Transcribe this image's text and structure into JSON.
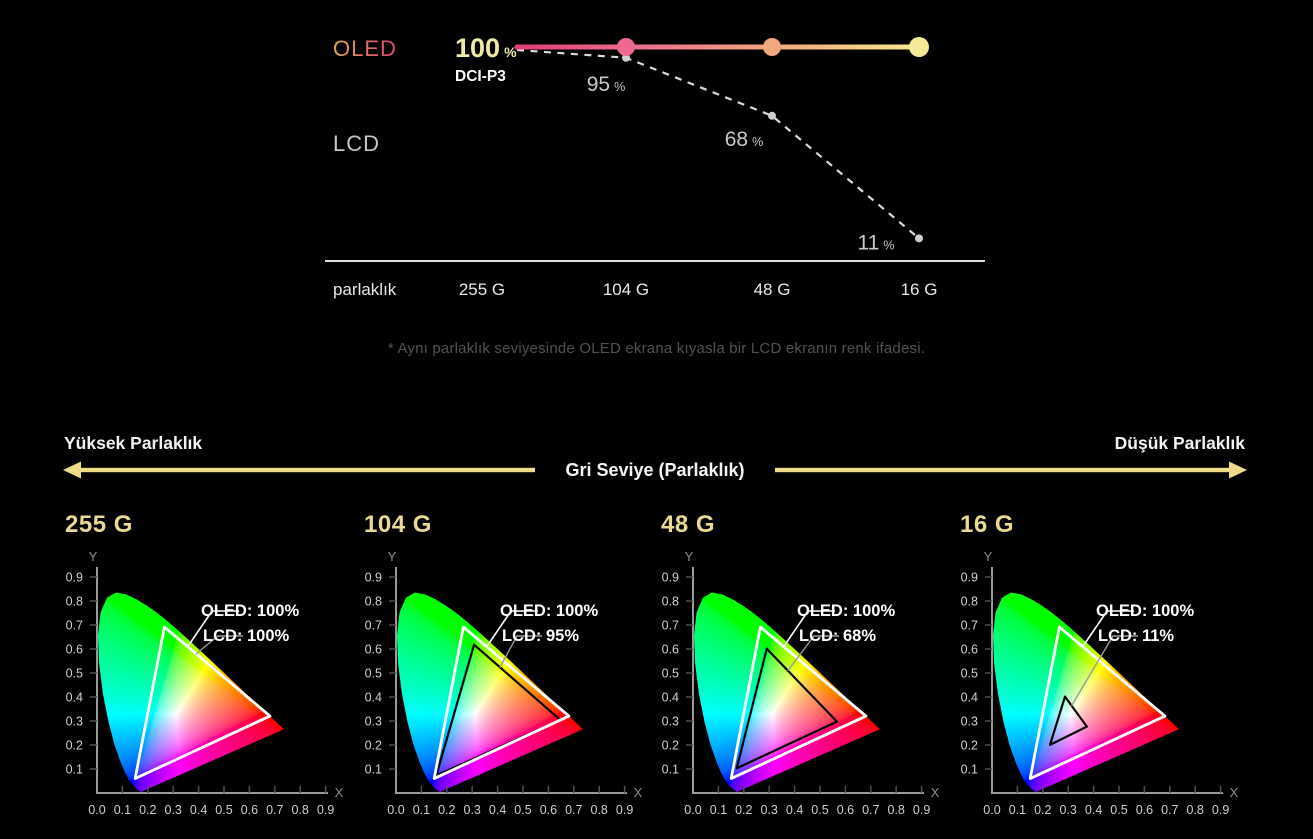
{
  "top_chart": {
    "oled_label": "OLED",
    "lcd_label": "LCD",
    "value_label": "100",
    "percent": "%",
    "standard_label": "DCI-P3",
    "x_axis_label": "parlaklık",
    "gray_levels": [
      "255 G",
      "104 G",
      "48 G",
      "16 G"
    ],
    "oled_series": [
      100,
      100,
      100,
      100
    ],
    "lcd_series": [
      100,
      95,
      68,
      11
    ],
    "lcd_point_labels": [
      "95",
      "68",
      "11"
    ]
  },
  "footnote": "* Aynı parlaklık seviyesinde OLED ekrana kıyasla bir LCD ekranın renk ifadesi.",
  "band": {
    "left_label": "Yüksek Parlaklık",
    "center_label": "Gri Seviye (Parlaklık)",
    "right_label": "Düşük Parlaklık"
  },
  "cie_axes": {
    "x_label": "X",
    "y_label": "Y",
    "x_ticks": [
      "0.0",
      "0.1",
      "0.2",
      "0.3",
      "0.4",
      "0.5",
      "0.6",
      "0.7",
      "0.8",
      "0.9"
    ],
    "y_ticks": [
      "0.1",
      "0.2",
      "0.3",
      "0.4",
      "0.5",
      "0.6",
      "0.7",
      "0.8",
      "0.9"
    ]
  },
  "cie_charts": [
    {
      "title": "255 G",
      "oled_annotation": "OLED: 100%",
      "lcd_annotation": "LCD: 100%",
      "oled_pct": 100,
      "lcd_pct": 100
    },
    {
      "title": "104 G",
      "oled_annotation": "OLED: 100%",
      "lcd_annotation": "LCD: 95%",
      "oled_pct": 100,
      "lcd_pct": 95
    },
    {
      "title": "48 G",
      "oled_annotation": "OLED: 100%",
      "lcd_annotation": "LCD: 68%",
      "oled_pct": 100,
      "lcd_pct": 68
    },
    {
      "title": "16 G",
      "oled_annotation": "OLED: 100%",
      "lcd_annotation": "LCD: 11%",
      "oled_pct": 100,
      "lcd_pct": 11
    }
  ],
  "colors": {
    "background": "#000000",
    "oled_gradient_start": "#e23d74",
    "oled_gradient_mid": "#f2a87e",
    "oled_gradient_end": "#f6e98e",
    "oled_dots": [
      "#ee6890",
      "#f2a87e",
      "#f5ea96"
    ],
    "lcd_dashed_line": "#d9d9d9",
    "arrow_gold": "#eedc86",
    "title_gold": "#e8d993",
    "footnote_gray": "#515151",
    "value_yellow": "#f0eaa6"
  },
  "chart_data": [
    {
      "type": "line",
      "title": "DCI-P3 color coverage vs gray level (brightness)",
      "categories": [
        "255 G",
        "104 G",
        "48 G",
        "16 G"
      ],
      "xlabel": "parlaklık",
      "ylabel": "DCI-P3 %",
      "ylim": [
        0,
        100
      ],
      "grid": false,
      "legend_position": "left",
      "series": [
        {
          "name": "OLED",
          "values": [
            100,
            100,
            100,
            100
          ]
        },
        {
          "name": "LCD",
          "values": [
            100,
            95,
            68,
            11
          ]
        }
      ]
    },
    {
      "type": "area",
      "subtype": "cie-1931-chromaticity-diagrams",
      "xlabel": "X",
      "ylabel": "Y",
      "xlim": [
        0,
        0.9
      ],
      "ylim": [
        0,
        0.9
      ],
      "reference_gamut": "DCI-P3",
      "dci_p3_vertices": {
        "red": [
          0.68,
          0.32
        ],
        "green": [
          0.265,
          0.69
        ],
        "blue": [
          0.15,
          0.06
        ]
      },
      "white_point": [
        0.3127,
        0.329
      ],
      "charts": [
        {
          "gray_level": "255 G",
          "oled_dcip3_pct": 100,
          "lcd_dcip3_pct": 100
        },
        {
          "gray_level": "104 G",
          "oled_dcip3_pct": 100,
          "lcd_dcip3_pct": 95
        },
        {
          "gray_level": "48 G",
          "oled_dcip3_pct": 100,
          "lcd_dcip3_pct": 68
        },
        {
          "gray_level": "16 G",
          "oled_dcip3_pct": 100,
          "lcd_dcip3_pct": 11
        }
      ]
    }
  ]
}
